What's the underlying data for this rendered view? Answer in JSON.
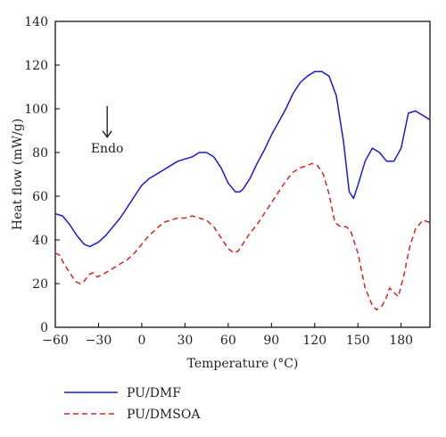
{
  "chart_data": {
    "type": "line",
    "xlabel": "Temperature (°C)",
    "ylabel": "Heat flow (mW/g)",
    "xlim": [
      -60,
      200
    ],
    "ylim": [
      0,
      140
    ],
    "xticks": [
      -60,
      -30,
      0,
      30,
      60,
      90,
      120,
      150,
      180
    ],
    "yticks": [
      0,
      20,
      40,
      60,
      80,
      100,
      120,
      140
    ],
    "grid": false,
    "legend_position": "bottom-left, below plot",
    "annotation": {
      "text": "Endo",
      "arrow": "down",
      "x": -24,
      "y": 98
    },
    "series": [
      {
        "name": "PU/DMF",
        "color": "#1a1adb",
        "style": "solid",
        "x": [
          -60,
          -55,
          -50,
          -45,
          -40,
          -36,
          -30,
          -25,
          -20,
          -15,
          -10,
          -5,
          0,
          5,
          10,
          15,
          20,
          25,
          30,
          35,
          40,
          45,
          50,
          55,
          60,
          65,
          68,
          70,
          75,
          80,
          85,
          90,
          95,
          100,
          105,
          110,
          115,
          120,
          125,
          130,
          135,
          140,
          144,
          147,
          150,
          155,
          160,
          165,
          170,
          175,
          180,
          185,
          190,
          195,
          200
        ],
        "y": [
          52,
          51,
          47,
          42,
          38,
          37,
          39,
          42,
          46,
          50,
          55,
          60,
          65,
          68,
          70,
          72,
          74,
          76,
          77,
          78,
          80,
          80,
          78,
          73,
          66,
          62,
          62,
          63,
          68,
          75,
          81,
          88,
          94,
          100,
          107,
          112,
          115,
          117,
          117,
          115,
          106,
          85,
          62,
          59,
          65,
          76,
          82,
          80,
          76,
          76,
          82,
          98,
          99,
          97,
          95
        ]
      },
      {
        "name": "PU/DMSOA",
        "color": "#d9241c",
        "style": "dashed",
        "x": [
          -60,
          -57,
          -54,
          -50,
          -46,
          -43,
          -40,
          -37,
          -34,
          -31,
          -28,
          -25,
          -20,
          -15,
          -10,
          -5,
          0,
          5,
          10,
          15,
          20,
          25,
          30,
          35,
          40,
          45,
          50,
          55,
          60,
          64,
          67,
          70,
          75,
          80,
          85,
          90,
          95,
          100,
          105,
          110,
          115,
          118,
          122,
          126,
          130,
          134,
          138,
          142,
          145,
          150,
          155,
          160,
          163,
          167,
          170,
          172,
          175,
          178,
          182,
          186,
          190,
          195,
          200
        ],
        "y": [
          34,
          33,
          29,
          25,
          21,
          20,
          21,
          24,
          25,
          23,
          24,
          25,
          27,
          29,
          31,
          34,
          38,
          42,
          45,
          48,
          49,
          50,
          50,
          51,
          50,
          49,
          46,
          41,
          36,
          34,
          35,
          38,
          43,
          47,
          52,
          57,
          62,
          67,
          71,
          73,
          74,
          75,
          74,
          70,
          61,
          48,
          46,
          46,
          44,
          34,
          18,
          10,
          8,
          10,
          14,
          18,
          16,
          14,
          24,
          37,
          45,
          49,
          48
        ]
      }
    ]
  }
}
